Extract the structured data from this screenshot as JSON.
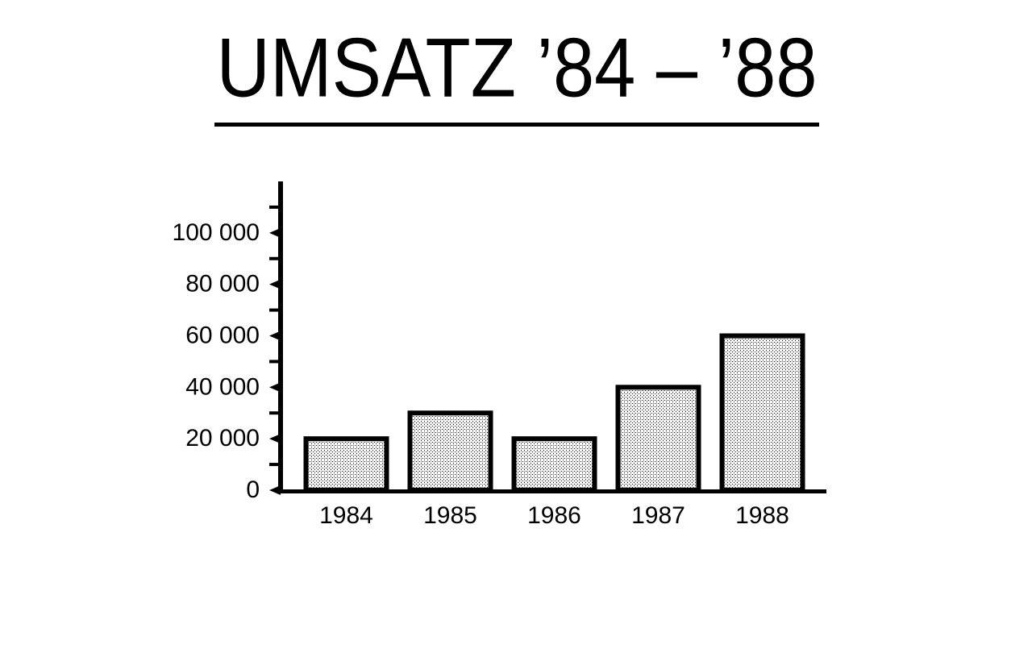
{
  "chart_data": {
    "type": "bar",
    "title": "UMSATZ ’84 – ’88",
    "categories": [
      "1984",
      "1985",
      "1986",
      "1987",
      "1988"
    ],
    "values": [
      20000,
      30000,
      20000,
      40000,
      60000
    ],
    "color": "#000000",
    "ylim": [
      0,
      120000
    ],
    "yticks": [
      0,
      {
        "value": 20000,
        "label": "20 000"
      },
      {
        "value": 40000,
        "label": "40 000"
      },
      {
        "value": 60000,
        "label": "60 000"
      },
      {
        "value": 80000,
        "label": "80 000"
      },
      {
        "value": 100000,
        "label": "100 000"
      }
    ],
    "minor_yticks": [
      10000,
      30000,
      50000,
      70000,
      90000,
      110000
    ]
  }
}
